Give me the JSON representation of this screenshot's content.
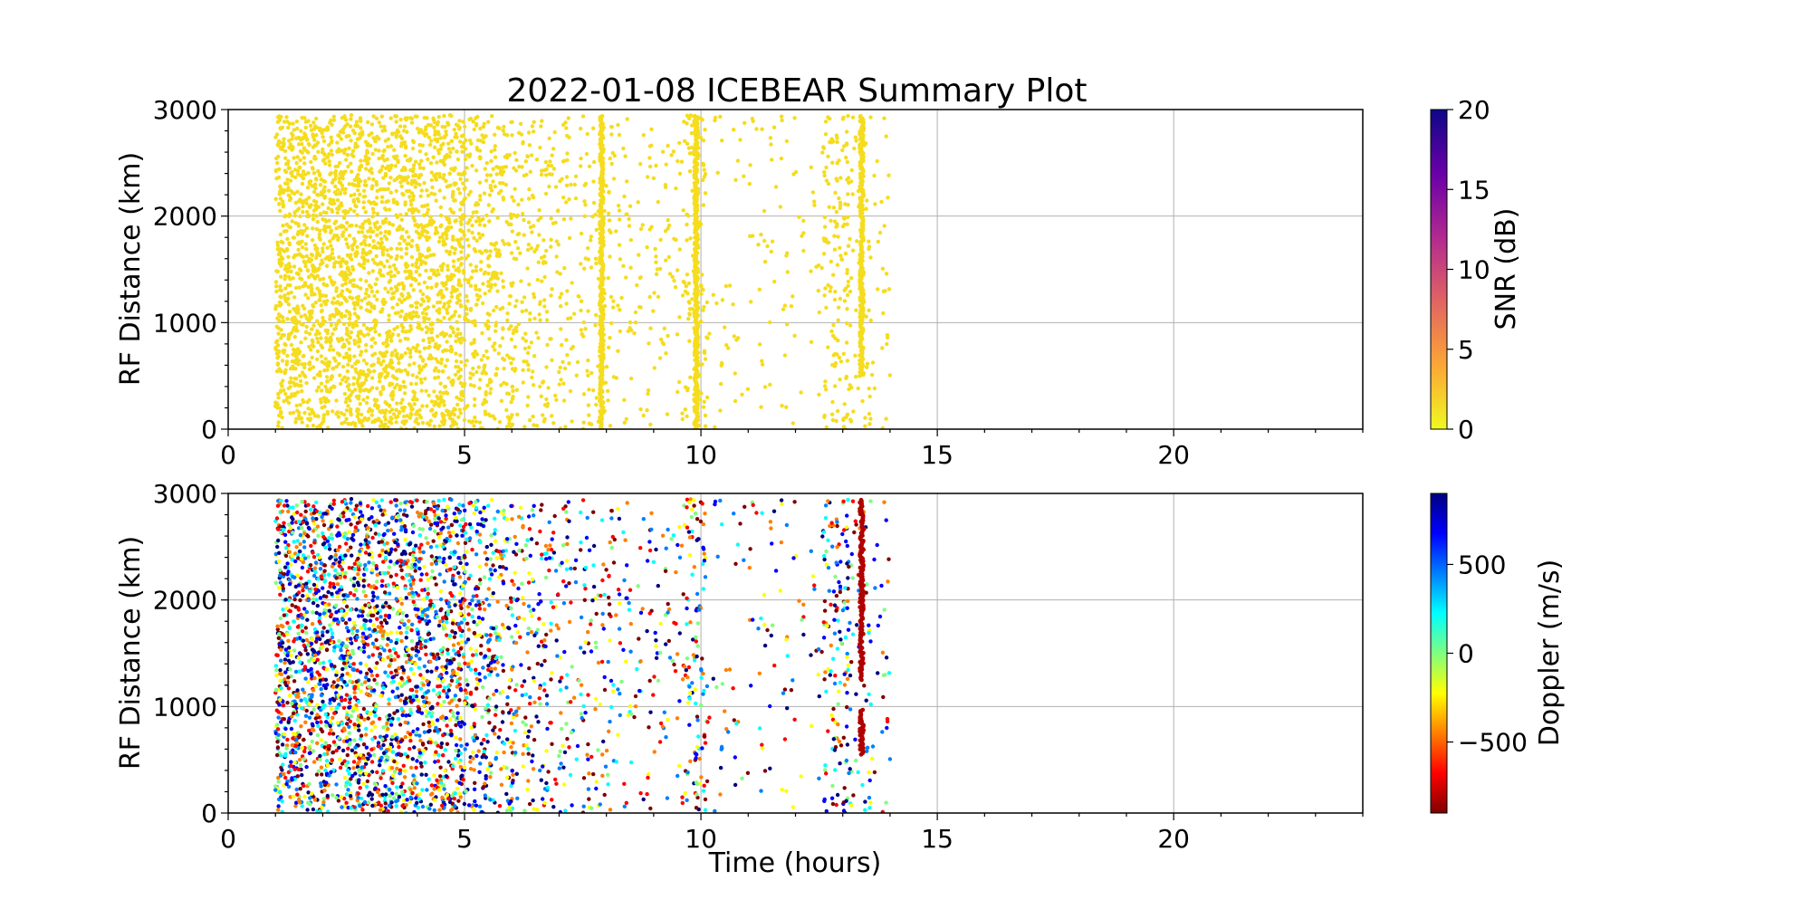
{
  "title": "2022-01-08 ICEBEAR Summary Plot",
  "chart_data": [
    {
      "type": "scatter",
      "panel": "top",
      "ylabel": "RF Distance (km)",
      "xlabel": "",
      "xlim": [
        0,
        24
      ],
      "ylim": [
        0,
        3000
      ],
      "xticks": [
        "0",
        "5",
        "10",
        "15",
        "20"
      ],
      "yticks": [
        "0",
        "1000",
        "2000",
        "3000"
      ],
      "grid": true,
      "marker_color": "#f5dc1e",
      "colorbar": {
        "label": "SNR (dB)",
        "range": [
          0,
          20
        ],
        "ticks": [
          "0",
          "5",
          "10",
          "15",
          "20"
        ],
        "colormap": "plasma_r",
        "colors": [
          "#f0f921",
          "#fca636",
          "#e16462",
          "#b12a90",
          "#6a00a8",
          "#0d0887"
        ]
      },
      "data_extent": {
        "x": [
          1.0,
          14.0
        ],
        "y": [
          0,
          2950
        ]
      },
      "activity_bands": [
        {
          "x0": 1.0,
          "x1": 5.0,
          "density": 1.0
        },
        {
          "x0": 5.0,
          "x1": 6.1,
          "density": 0.55
        },
        {
          "x0": 6.1,
          "x1": 7.2,
          "density": 0.3
        },
        {
          "x0": 7.2,
          "x1": 8.2,
          "density": 0.2
        },
        {
          "x0": 8.2,
          "x1": 9.7,
          "density": 0.14
        },
        {
          "x0": 9.7,
          "x1": 10.1,
          "density": 0.45
        },
        {
          "x0": 10.1,
          "x1": 12.6,
          "density": 0.07
        },
        {
          "x0": 12.6,
          "x1": 13.2,
          "density": 0.4
        },
        {
          "x0": 13.2,
          "x1": 14.0,
          "density": 0.14
        }
      ],
      "vertical_features": [
        {
          "x": 7.9,
          "y0": 0,
          "y1": 2950
        },
        {
          "x": 9.9,
          "y0": 0,
          "y1": 2950
        },
        {
          "x": 13.4,
          "y0": 500,
          "y1": 2950
        }
      ]
    },
    {
      "type": "scatter",
      "panel": "bottom",
      "ylabel": "RF Distance (km)",
      "xlabel": "Time (hours)",
      "xlim": [
        0,
        24
      ],
      "ylim": [
        0,
        3000
      ],
      "xticks": [
        "0",
        "5",
        "10",
        "15",
        "20"
      ],
      "yticks": [
        "0",
        "1000",
        "2000",
        "3000"
      ],
      "grid": true,
      "colorbar": {
        "label": "Doppler (m/s)",
        "range": [
          -900,
          900
        ],
        "ticks": [
          "−500",
          "0",
          "500"
        ],
        "tick_values": [
          -500,
          0,
          500
        ],
        "colormap": "jet_r",
        "colors": [
          "#7f0000",
          "#ff0000",
          "#ff7f00",
          "#ffff00",
          "#7fff7f",
          "#00ffff",
          "#007fff",
          "#0000ff",
          "#00007f"
        ]
      },
      "data_extent": {
        "x": [
          1.0,
          14.0
        ],
        "y": [
          0,
          2950
        ]
      },
      "activity_bands": [
        {
          "x0": 1.0,
          "x1": 5.0,
          "density": 1.0
        },
        {
          "x0": 5.0,
          "x1": 6.1,
          "density": 0.55
        },
        {
          "x0": 6.1,
          "x1": 7.2,
          "density": 0.3
        },
        {
          "x0": 7.2,
          "x1": 8.2,
          "density": 0.2
        },
        {
          "x0": 8.2,
          "x1": 9.7,
          "density": 0.14
        },
        {
          "x0": 9.7,
          "x1": 10.1,
          "density": 0.45
        },
        {
          "x0": 10.1,
          "x1": 12.6,
          "density": 0.07
        },
        {
          "x0": 12.6,
          "x1": 13.2,
          "density": 0.4
        },
        {
          "x0": 13.2,
          "x1": 14.0,
          "density": 0.14
        }
      ],
      "vertical_features": [
        {
          "x": 13.4,
          "y0": 1250,
          "y1": 2950,
          "color": "#b00000"
        },
        {
          "x": 13.4,
          "y0": 550,
          "y1": 980,
          "color": "#b00000"
        }
      ]
    }
  ]
}
